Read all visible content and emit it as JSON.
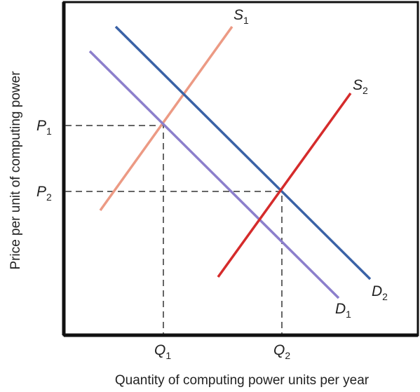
{
  "diagram": {
    "x_axis_label": "Quantity of computing power units per year",
    "y_axis_label": "Price per unit of computing power",
    "price_labels": [
      {
        "main": "P",
        "sub": "1"
      },
      {
        "main": "P",
        "sub": "2"
      }
    ],
    "quantity_labels": [
      {
        "main": "Q",
        "sub": "1"
      },
      {
        "main": "Q",
        "sub": "2"
      }
    ],
    "curve_labels": {
      "s1": {
        "main": "S",
        "sub": "1"
      },
      "s2": {
        "main": "S",
        "sub": "2"
      },
      "d1": {
        "main": "D",
        "sub": "1"
      },
      "d2": {
        "main": "D",
        "sub": "2"
      }
    }
  }
}
